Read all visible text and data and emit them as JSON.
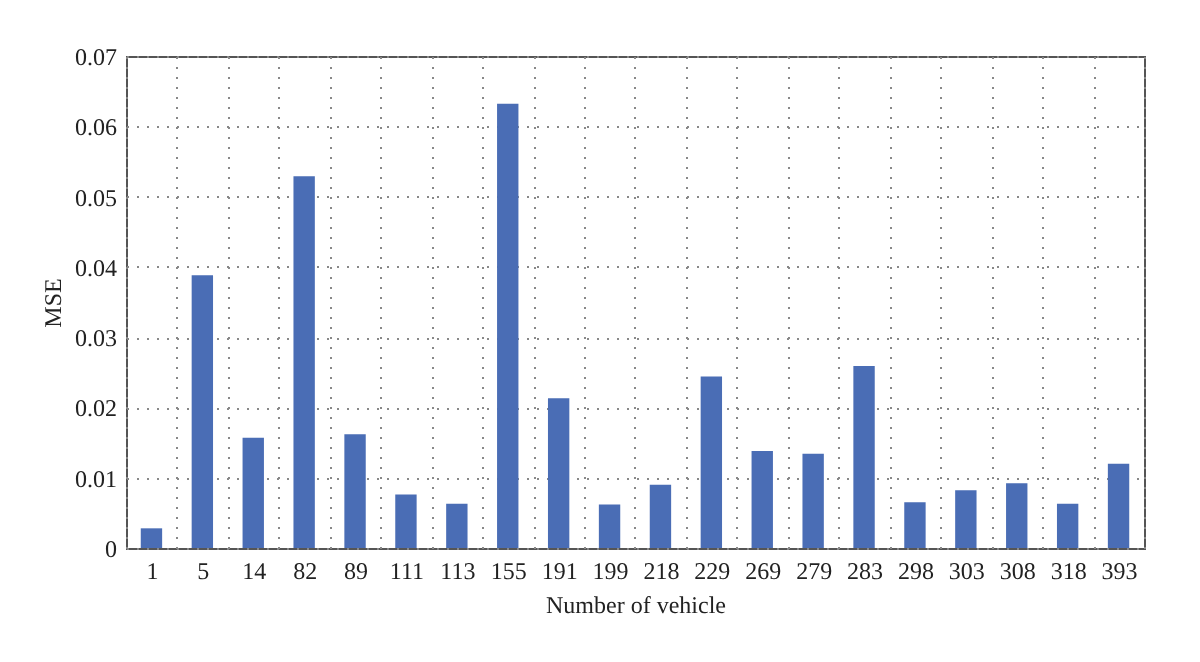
{
  "chart_data": {
    "type": "bar",
    "xlabel": "Number of vehicle",
    "ylabel": "MSE",
    "categories": [
      "1",
      "5",
      "14",
      "82",
      "89",
      "111",
      "113",
      "155",
      "191",
      "199",
      "218",
      "229",
      "269",
      "279",
      "283",
      "298",
      "303",
      "308",
      "318",
      "393"
    ],
    "values": [
      0.0028,
      0.0388,
      0.0157,
      0.0529,
      0.0162,
      0.0076,
      0.0063,
      0.0632,
      0.0213,
      0.0062,
      0.009,
      0.0244,
      0.0138,
      0.0134,
      0.0259,
      0.0065,
      0.0082,
      0.0092,
      0.0063,
      0.012
    ],
    "color": "#4a6db5",
    "ylim": [
      0,
      0.07
    ],
    "yticks": [
      0,
      0.01,
      0.02,
      0.03,
      0.04,
      0.05,
      0.06,
      0.07
    ],
    "grid": true
  }
}
